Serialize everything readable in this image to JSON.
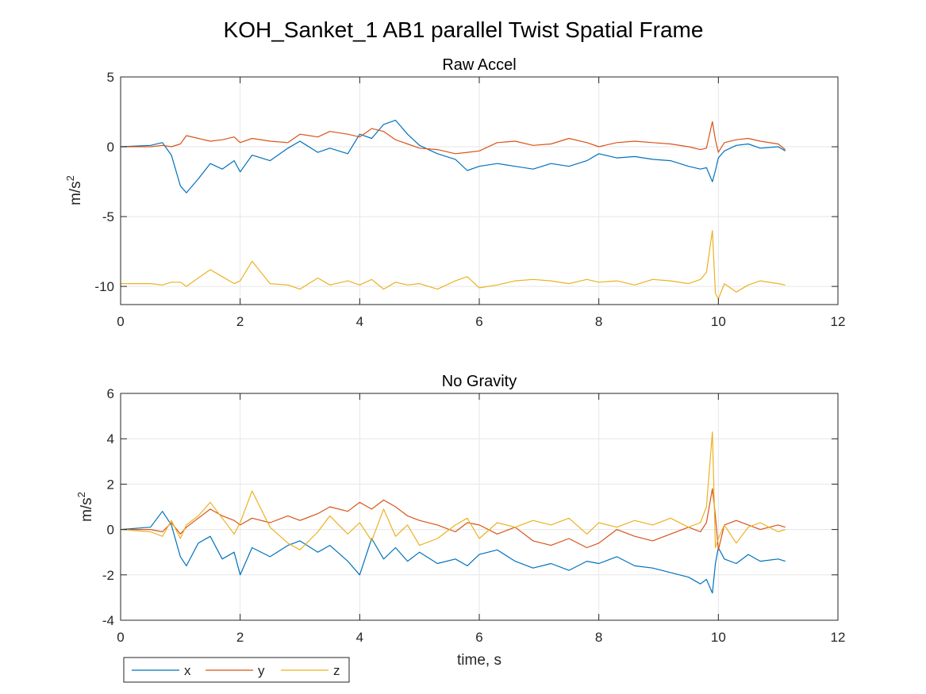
{
  "figure": {
    "title": "KOH_Sanket_1 AB1 parallel Twist Spatial Frame"
  },
  "legend": {
    "position": "bottom-left",
    "entries": [
      "x",
      "y",
      "z"
    ]
  },
  "colors": {
    "x": "#0072BD",
    "y": "#D95319",
    "z": "#EDB120",
    "grid": "#e6e6e6",
    "axis": "#262626"
  },
  "chart_data": [
    {
      "type": "line",
      "title": "Raw Accel",
      "xlabel": "",
      "ylabel": "m/s",
      "ylabel_sup": "2",
      "xlim": [
        0,
        12
      ],
      "ylim": [
        -11.3,
        5
      ],
      "xticks": [
        0,
        2,
        4,
        6,
        8,
        10,
        12
      ],
      "yticks": [
        5,
        0,
        -5,
        -10
      ],
      "grid": true,
      "x": [
        0,
        0.5,
        0.7,
        0.85,
        1.0,
        1.1,
        1.3,
        1.5,
        1.7,
        1.9,
        2.0,
        2.2,
        2.5,
        2.8,
        3.0,
        3.3,
        3.5,
        3.8,
        4.0,
        4.2,
        4.4,
        4.6,
        4.8,
        5.0,
        5.3,
        5.6,
        5.8,
        6.0,
        6.3,
        6.6,
        6.9,
        7.2,
        7.5,
        7.8,
        8.0,
        8.3,
        8.6,
        8.9,
        9.2,
        9.5,
        9.7,
        9.8,
        9.9,
        9.95,
        10.0,
        10.1,
        10.3,
        10.5,
        10.7,
        11.0,
        11.12
      ],
      "series": [
        {
          "name": "x",
          "values": [
            0,
            0.1,
            0.3,
            -0.6,
            -2.8,
            -3.3,
            -2.3,
            -1.2,
            -1.6,
            -1.0,
            -1.8,
            -0.6,
            -1.0,
            -0.1,
            0.4,
            -0.4,
            -0.1,
            -0.5,
            0.9,
            0.6,
            1.6,
            1.9,
            0.9,
            0.1,
            -0.5,
            -0.9,
            -1.7,
            -1.4,
            -1.2,
            -1.4,
            -1.6,
            -1.2,
            -1.4,
            -1.0,
            -0.5,
            -0.8,
            -0.7,
            -0.9,
            -1.0,
            -1.4,
            -1.6,
            -1.5,
            -2.5,
            -1.7,
            -0.8,
            -0.3,
            0.1,
            0.2,
            -0.1,
            0.0,
            -0.3
          ]
        },
        {
          "name": "y",
          "values": [
            0,
            0,
            0.1,
            0.0,
            0.2,
            0.8,
            0.6,
            0.4,
            0.5,
            0.7,
            0.3,
            0.6,
            0.4,
            0.3,
            0.9,
            0.7,
            1.1,
            0.9,
            0.7,
            1.3,
            1.1,
            0.5,
            0.2,
            -0.1,
            -0.2,
            -0.5,
            -0.4,
            -0.3,
            0.3,
            0.4,
            0.1,
            0.2,
            0.6,
            0.3,
            0.0,
            0.3,
            0.4,
            0.3,
            0.2,
            0.0,
            -0.2,
            -0.1,
            1.8,
            0.5,
            -0.4,
            0.3,
            0.5,
            0.6,
            0.4,
            0.2,
            -0.2
          ]
        },
        {
          "name": "z",
          "values": [
            -9.8,
            -9.8,
            -9.9,
            -9.7,
            -9.7,
            -10.0,
            -9.4,
            -8.8,
            -9.3,
            -9.8,
            -9.6,
            -8.2,
            -9.8,
            -9.9,
            -10.2,
            -9.4,
            -9.9,
            -9.6,
            -9.9,
            -9.5,
            -10.2,
            -9.7,
            -9.9,
            -9.8,
            -10.2,
            -9.6,
            -9.3,
            -10.1,
            -9.9,
            -9.6,
            -9.5,
            -9.6,
            -9.8,
            -9.5,
            -9.7,
            -9.6,
            -9.9,
            -9.5,
            -9.6,
            -9.8,
            -9.5,
            -9.0,
            -6.0,
            -10.5,
            -10.9,
            -9.8,
            -10.4,
            -9.9,
            -9.6,
            -9.8,
            -9.9
          ]
        }
      ]
    },
    {
      "type": "line",
      "title": "No Gravity",
      "xlabel": "time, s",
      "ylabel": "m/s",
      "ylabel_sup": "2",
      "xlim": [
        0,
        12
      ],
      "ylim": [
        -4,
        6
      ],
      "xticks": [
        0,
        2,
        4,
        6,
        8,
        10,
        12
      ],
      "yticks": [
        6,
        4,
        2,
        0,
        -2,
        -4
      ],
      "grid": true,
      "x": [
        0,
        0.5,
        0.7,
        0.85,
        1.0,
        1.1,
        1.3,
        1.5,
        1.7,
        1.9,
        2.0,
        2.2,
        2.5,
        2.8,
        3.0,
        3.3,
        3.5,
        3.8,
        4.0,
        4.2,
        4.4,
        4.6,
        4.8,
        5.0,
        5.3,
        5.6,
        5.8,
        6.0,
        6.3,
        6.6,
        6.9,
        7.2,
        7.5,
        7.8,
        8.0,
        8.3,
        8.6,
        8.9,
        9.2,
        9.5,
        9.7,
        9.8,
        9.9,
        9.95,
        10.0,
        10.1,
        10.3,
        10.5,
        10.7,
        11.0,
        11.12
      ],
      "series": [
        {
          "name": "x",
          "values": [
            0,
            0.1,
            0.8,
            0.2,
            -1.2,
            -1.6,
            -0.6,
            -0.3,
            -1.3,
            -1.0,
            -2.0,
            -0.8,
            -1.2,
            -0.7,
            -0.5,
            -1.0,
            -0.7,
            -1.4,
            -2.0,
            -0.4,
            -1.3,
            -0.8,
            -1.4,
            -1.0,
            -1.5,
            -1.3,
            -1.6,
            -1.1,
            -0.9,
            -1.4,
            -1.7,
            -1.5,
            -1.8,
            -1.4,
            -1.5,
            -1.2,
            -1.6,
            -1.7,
            -1.9,
            -2.1,
            -2.4,
            -2.2,
            -2.8,
            -1.5,
            -0.8,
            -1.3,
            -1.5,
            -1.1,
            -1.4,
            -1.3,
            -1.4
          ]
        },
        {
          "name": "y",
          "values": [
            0,
            0,
            -0.1,
            0.3,
            -0.2,
            0.1,
            0.5,
            0.9,
            0.6,
            0.4,
            0.2,
            0.5,
            0.3,
            0.6,
            0.4,
            0.7,
            1.0,
            0.8,
            1.2,
            0.9,
            1.3,
            1.0,
            0.6,
            0.4,
            0.2,
            -0.1,
            0.3,
            0.2,
            -0.2,
            0.1,
            -0.5,
            -0.7,
            -0.4,
            -0.8,
            -0.6,
            0.0,
            -0.3,
            -0.5,
            -0.2,
            0.1,
            -0.1,
            0.3,
            1.8,
            0.6,
            -0.9,
            0.2,
            0.4,
            0.2,
            0.0,
            0.2,
            0.1
          ]
        },
        {
          "name": "z",
          "values": [
            0,
            -0.1,
            -0.3,
            0.4,
            -0.4,
            0.2,
            0.6,
            1.2,
            0.5,
            -0.2,
            0.3,
            1.7,
            0.1,
            -0.6,
            -0.9,
            -0.1,
            0.6,
            -0.2,
            0.3,
            -0.5,
            0.9,
            -0.3,
            0.2,
            -0.7,
            -0.4,
            0.2,
            0.5,
            -0.4,
            0.3,
            0.1,
            0.4,
            0.2,
            0.5,
            -0.2,
            0.3,
            0.1,
            0.4,
            0.2,
            0.5,
            0.1,
            0.3,
            1.0,
            4.3,
            -0.8,
            -0.4,
            0.2,
            -0.6,
            0.1,
            0.3,
            -0.1,
            0.0
          ]
        }
      ]
    }
  ]
}
